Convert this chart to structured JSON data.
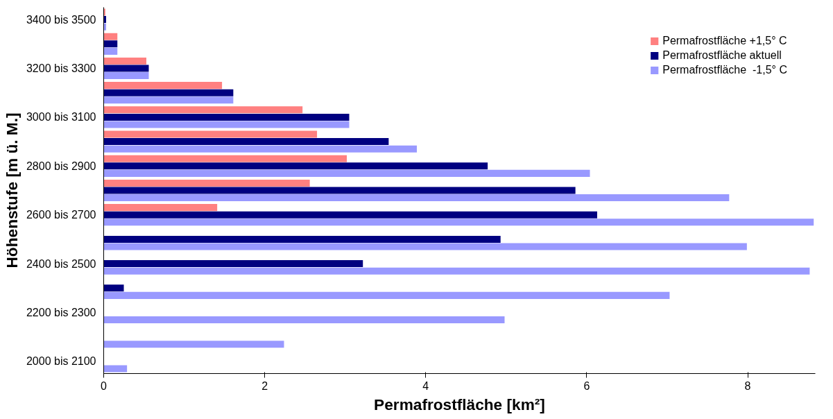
{
  "chart_data": {
    "type": "bar",
    "orientation": "horizontal",
    "xlabel": "Permafrostfläche [km²]",
    "ylabel": "Höhenstufe [m ü. M.]",
    "categories": [
      "3400 bis 3500",
      null,
      "3200 bis 3300",
      null,
      "3000 bis 3100",
      null,
      "2800 bis 2900",
      null,
      "2600 bis 2700",
      null,
      "2400 bis 2500",
      null,
      "2200 bis 2300",
      null,
      "2000 bis 2100"
    ],
    "series": [
      {
        "name": "Permafrostfläche +1,5° C",
        "color": "#ff8080",
        "values": [
          0.02,
          0.17,
          0.53,
          1.47,
          2.47,
          2.65,
          3.02,
          2.56,
          1.41,
          null,
          null,
          null,
          null,
          null,
          null
        ]
      },
      {
        "name": "Permafrostfläche aktuell",
        "color": "#000080",
        "values": [
          0.03,
          0.17,
          0.56,
          1.61,
          3.05,
          3.54,
          4.77,
          5.86,
          6.13,
          4.93,
          3.22,
          0.25,
          null,
          null,
          null
        ]
      },
      {
        "name": "Permafrostfläche  -1,5° C",
        "color": "#9999ff",
        "values": [
          0.03,
          0.17,
          0.56,
          1.61,
          3.05,
          3.89,
          6.04,
          7.77,
          8.82,
          7.99,
          8.77,
          7.03,
          4.98,
          2.24,
          0.29
        ]
      }
    ],
    "xlim": [
      0,
      8.84
    ],
    "xticks": [
      0,
      2,
      4,
      6,
      8
    ],
    "grid": false,
    "legend": "top right"
  }
}
